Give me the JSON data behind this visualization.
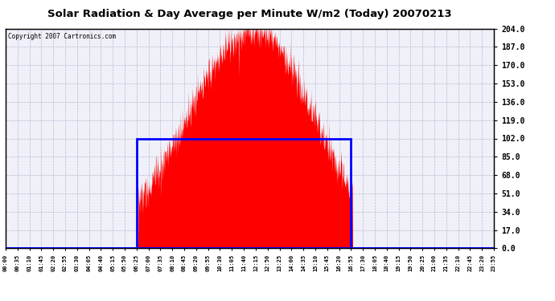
{
  "title": "Solar Radiation & Day Average per Minute W/m2 (Today) 20070213",
  "copyright": "Copyright 2007 Cartronics.com",
  "bg_color": "#ffffff",
  "plot_bg_color": "#f0f0f8",
  "bar_color": "#ff0000",
  "line_color": "#0000ff",
  "grid_color": "#aaaacc",
  "ymin": 0.0,
  "ymax": 204.0,
  "ytick_step": 17.0,
  "x_start_minutes": 0,
  "x_end_minutes": 1435,
  "day_avg_start_minutes": 385,
  "day_avg_end_minutes": 1015,
  "day_avg_value": 102.0,
  "x_tick_labels": [
    "00:00",
    "00:35",
    "01:10",
    "01:45",
    "02:20",
    "02:55",
    "03:30",
    "04:05",
    "04:40",
    "05:15",
    "05:50",
    "06:25",
    "07:00",
    "07:35",
    "08:10",
    "08:45",
    "09:20",
    "09:55",
    "10:30",
    "11:05",
    "11:40",
    "12:15",
    "12:50",
    "13:25",
    "14:00",
    "14:35",
    "15:10",
    "15:45",
    "16:20",
    "16:55",
    "17:30",
    "18:05",
    "18:40",
    "19:15",
    "19:50",
    "20:25",
    "21:00",
    "21:35",
    "22:10",
    "22:45",
    "23:20",
    "23:55"
  ],
  "x_tick_positions_minutes": [
    0,
    35,
    70,
    105,
    140,
    175,
    210,
    245,
    280,
    315,
    350,
    385,
    420,
    455,
    490,
    525,
    560,
    595,
    630,
    665,
    700,
    735,
    770,
    805,
    840,
    875,
    910,
    945,
    980,
    1015,
    1050,
    1085,
    1120,
    1155,
    1190,
    1225,
    1260,
    1295,
    1330,
    1365,
    1400,
    1435
  ],
  "solar_start_minute": 390,
  "solar_end_minute": 1020,
  "solar_peak_minute": 735,
  "solar_peak_value": 204.0
}
